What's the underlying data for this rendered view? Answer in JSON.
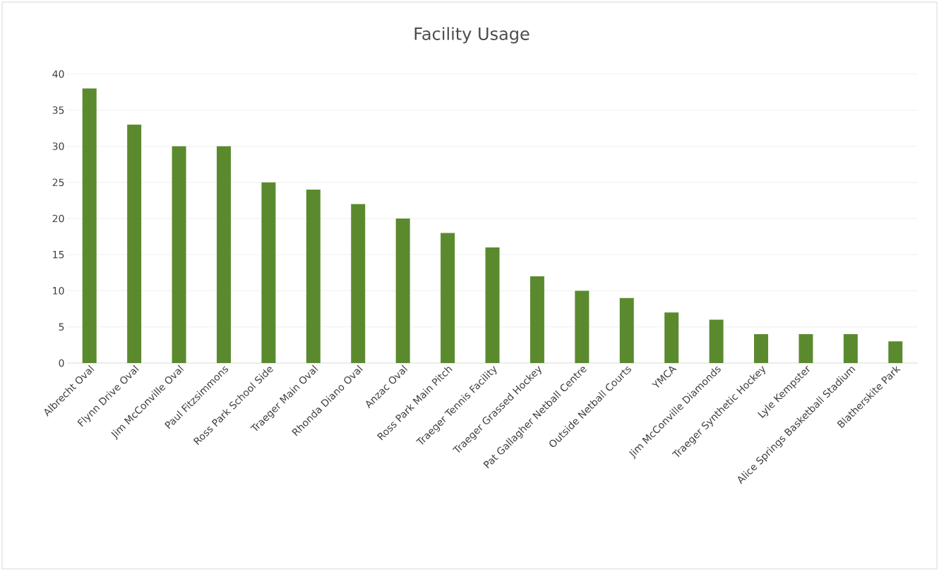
{
  "chart_data": {
    "type": "bar",
    "title": "Facility Usage",
    "categories": [
      "Albrecht Oval",
      "Flynn Drive Oval",
      "Jim McConville Oval",
      "Paul Fitzsimmons",
      "Ross Park School Side",
      "Traeger Main Oval",
      "Rhonda Diano Oval",
      "Anzac Oval",
      "Ross Park Main Pitch",
      "Traeger Tennis Facility",
      "Traeger Grassed Hockey",
      "Pat Gallagher Netball Centre",
      "Outside Netball Courts",
      "YMCA",
      "Jim McConville Diamonds",
      "Traeger Synthetic Hockey",
      "Lyle Kempster",
      "Alice Springs Basketball Stadium",
      "Blatherskite Park"
    ],
    "values": [
      38,
      33,
      30,
      30,
      25,
      24,
      22,
      20,
      18,
      16,
      12,
      10,
      9,
      7,
      6,
      4,
      4,
      4,
      3
    ],
    "color": "#5b8a2e",
    "ylim": [
      0,
      40
    ],
    "yticks": [
      0,
      5,
      10,
      15,
      20,
      25,
      30,
      35,
      40
    ],
    "grid": "y"
  }
}
